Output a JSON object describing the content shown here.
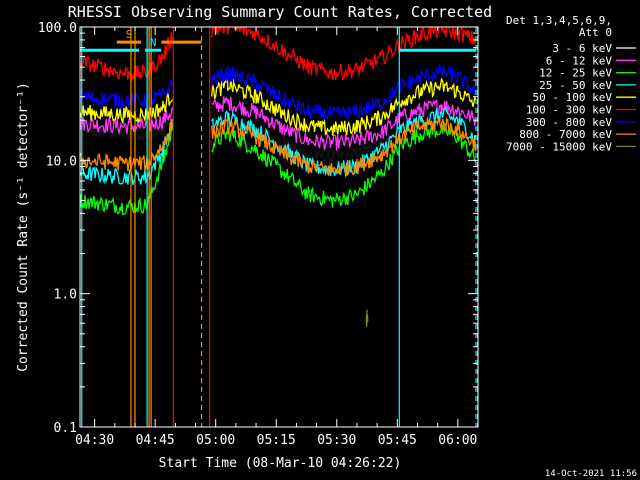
{
  "chart_data": {
    "type": "line",
    "title": "RHESSI Observing Summary Count Rates, Corrected",
    "xlabel": "Start Time (08-Mar-10 04:26:22)",
    "ylabel": "Corrected Count Rate (s⁻¹ detector⁻¹)",
    "x_ticks": [
      "04:30",
      "04:45",
      "05:00",
      "05:15",
      "05:30",
      "05:45",
      "06:00"
    ],
    "x_ticks_minutes": [
      30,
      45,
      60,
      75,
      90,
      105,
      120
    ],
    "x_range_minutes": [
      26.37,
      125.0
    ],
    "yscale": "log",
    "ylim": [
      0.1,
      100
    ],
    "y_ticks": [
      {
        "value": 0.1,
        "label": "0.1"
      },
      {
        "value": 1,
        "label": "1.0"
      },
      {
        "value": 10,
        "label": "10.0"
      },
      {
        "value": 100,
        "label": "100.0"
      }
    ],
    "legend_header": [
      "Det 1,3,4,5,6,9,",
      "Att 0"
    ],
    "legend_position": "right",
    "series": [
      {
        "name": "3 - 6 keV",
        "color": "#000000",
        "x": [
          26.4,
          37,
          43,
          47,
          49.5,
          52,
          57,
          59,
          63,
          70,
          77,
          83,
          89,
          95,
          101,
          106,
          111,
          116,
          120,
          124.6
        ],
        "y": [
          17,
          16,
          16,
          17,
          22,
          null,
          null,
          19,
          20,
          17,
          13,
          11,
          10.5,
          11,
          13,
          17,
          20,
          21,
          20,
          16
        ]
      },
      {
        "name": "6 - 12 keV",
        "color": "#ff33ff",
        "x": [
          26.4,
          37,
          43,
          47,
          49.5,
          52,
          57,
          59,
          63,
          70,
          77,
          83,
          89,
          95,
          101,
          106,
          111,
          116,
          120,
          124.6
        ],
        "y": [
          19,
          18,
          18,
          20,
          24,
          null,
          null,
          25,
          27,
          23,
          17,
          14,
          13.5,
          14,
          16,
          21,
          24,
          26,
          24,
          20
        ]
      },
      {
        "name": "12 - 25 keV",
        "color": "#00ff00",
        "x": [
          26.4,
          37,
          43,
          47,
          49.5,
          52,
          57,
          59,
          63,
          70,
          77,
          83,
          89,
          95,
          101,
          106,
          111,
          116,
          120,
          124.6
        ],
        "y": [
          5,
          4.5,
          4.6,
          10,
          18,
          null,
          null,
          13,
          16,
          12,
          8,
          5.5,
          5,
          5.5,
          8,
          13,
          16,
          17,
          15,
          10
        ]
      },
      {
        "name": "25 - 50 keV",
        "color": "#00ffff",
        "x": [
          26.4,
          37,
          43,
          47,
          49.5,
          52,
          57,
          59,
          63,
          70,
          77,
          83,
          89,
          95,
          101,
          106,
          111,
          116,
          120,
          124.6
        ],
        "y": [
          8,
          7.5,
          7.5,
          12,
          20,
          null,
          null,
          18,
          21,
          17,
          12,
          9,
          8.5,
          9,
          12,
          17,
          20,
          22,
          20,
          14
        ]
      },
      {
        "name": "50 - 100 keV",
        "color": "#ffff00",
        "x": [
          26.4,
          37,
          43,
          47,
          49.5,
          52,
          57,
          59,
          63,
          70,
          77,
          83,
          89,
          95,
          101,
          106,
          111,
          116,
          120,
          124.6
        ],
        "y": [
          23,
          22,
          22,
          25,
          32,
          null,
          null,
          32,
          37,
          30,
          22,
          18,
          17,
          18,
          21,
          28,
          33,
          36,
          33,
          26
        ]
      },
      {
        "name": "100 - 300 keV",
        "color": "#ff0000",
        "x": [
          26.4,
          37,
          43,
          47,
          49.5,
          52,
          57,
          59,
          63,
          70,
          77,
          83,
          89,
          95,
          101,
          106,
          111,
          116,
          120,
          124.6
        ],
        "y": [
          55,
          45,
          45,
          60,
          90,
          null,
          null,
          95,
          100,
          90,
          65,
          50,
          45,
          48,
          58,
          75,
          88,
          95,
          90,
          80
        ]
      },
      {
        "name": "300 - 800 keV",
        "color": "#0000ff",
        "x": [
          26.4,
          37,
          43,
          47,
          49.5,
          52,
          57,
          59,
          63,
          70,
          77,
          83,
          89,
          95,
          101,
          106,
          111,
          116,
          120,
          124.6
        ],
        "y": [
          30,
          28,
          28,
          31,
          38,
          null,
          null,
          40,
          45,
          38,
          28,
          23,
          22,
          23,
          27,
          36,
          42,
          46,
          42,
          32
        ]
      },
      {
        "name": "800 - 7000 keV",
        "color": "#ff8800",
        "x": [
          26.4,
          37,
          43,
          47,
          49.5,
          52,
          57,
          59,
          63,
          70,
          77,
          83,
          89,
          95,
          101,
          106,
          111,
          116,
          120,
          124.6
        ],
        "y": [
          10,
          9.5,
          9.5,
          13,
          20,
          null,
          null,
          16,
          18,
          15,
          11,
          9,
          8.5,
          9,
          11,
          15,
          18,
          19,
          17,
          13
        ]
      },
      {
        "name": "7000 - 15000 keV",
        "color": "#6b8e23",
        "x": [
          97.4,
          97.5,
          97.6
        ],
        "y": [
          0.6,
          0.7,
          0.62
        ]
      }
    ],
    "flags": [
      {
        "label": "S",
        "color": "#ff8800",
        "start": 35.5,
        "end": 41.5,
        "level": 77
      },
      {
        "label": "N",
        "color": "#00ffff",
        "start": 42.5,
        "end": 46.5,
        "level": 67
      },
      {
        "label": "",
        "color": "#00ffff",
        "start": 26.4,
        "end": 41,
        "level": 67
      },
      {
        "label": "",
        "color": "#ff8800",
        "start": 46.5,
        "end": 56.5,
        "level": 77
      },
      {
        "label": "",
        "color": "#00ffff",
        "start": 105.5,
        "end": 124.6,
        "level": 67
      }
    ],
    "vertical_lines": [
      {
        "x": 26.8,
        "color": "#00ffff",
        "style": "solid"
      },
      {
        "x": 39.0,
        "color": "#ff8800",
        "style": "solid"
      },
      {
        "x": 40.0,
        "color": "#ff8800",
        "style": "solid"
      },
      {
        "x": 43.0,
        "color": "#00ffff",
        "style": "solid"
      },
      {
        "x": 43.5,
        "color": "#ff8800",
        "style": "solid"
      },
      {
        "x": 44.0,
        "color": "#ff8800",
        "style": "solid"
      },
      {
        "x": 49.5,
        "color": "#ff0000",
        "style": "solid"
      },
      {
        "x": 56.5,
        "color": "#ff8800",
        "style": "dashed"
      },
      {
        "x": 58.5,
        "color": "#ff0000",
        "style": "solid"
      },
      {
        "x": 105.5,
        "color": "#00ffff",
        "style": "solid"
      },
      {
        "x": 124.5,
        "color": "#00ffff",
        "style": "dashed"
      },
      {
        "x": 124.9,
        "color": "#ff8800",
        "style": "dashed"
      }
    ],
    "timestamp": "14-Oct-2021 11:56"
  }
}
